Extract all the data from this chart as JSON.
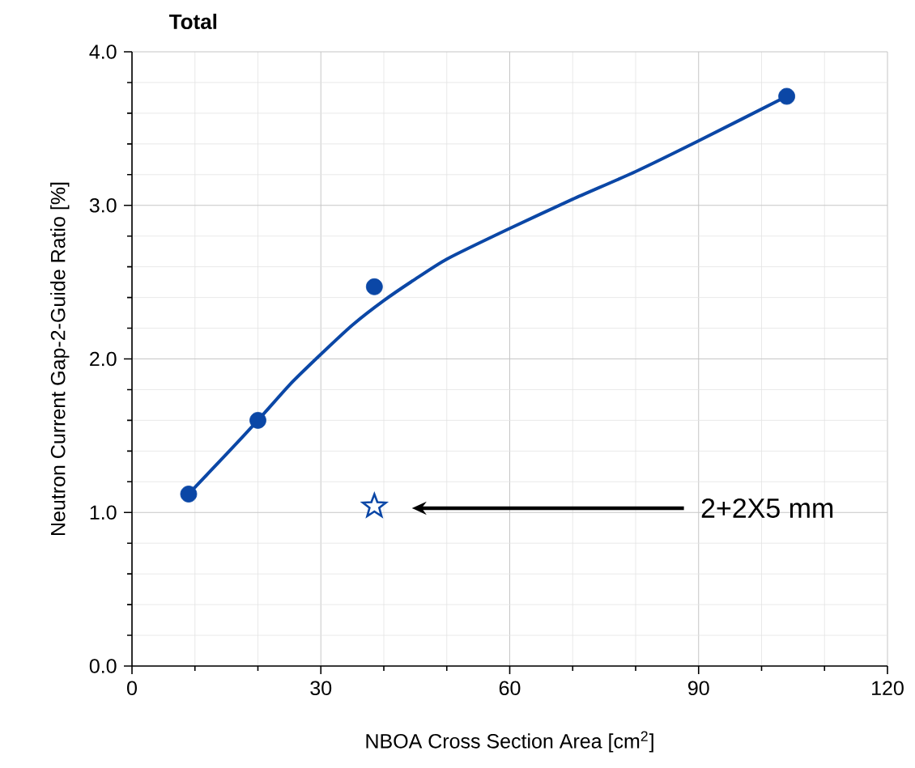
{
  "chart_data": {
    "type": "scatter",
    "title": "**Total**",
    "xlabel": "NBOA Cross Section Area [cm$^{2}$]",
    "ylabel": "Neutron Current Gap-2-Guide Ratio [%]",
    "xlim": [
      0,
      120
    ],
    "ylim": [
      0,
      4
    ],
    "xticks": [
      0,
      30,
      60,
      90,
      120
    ],
    "yticks": [
      {
        "value": 0,
        "label": "0.0"
      },
      {
        "value": 1,
        "label": "1.0"
      },
      {
        "value": 2,
        "label": "2.0"
      },
      {
        "value": 3,
        "label": "3.0"
      },
      {
        "value": 4,
        "label": "4.0"
      }
    ],
    "grid": true,
    "series": [
      {
        "type": "line",
        "color": "#0b47a6",
        "marker": "none",
        "line_style": "solid",
        "x": [
          9,
          15,
          20,
          25,
          30,
          35,
          40,
          45,
          50,
          60,
          70,
          80,
          90,
          104
        ],
        "values": [
          1.12,
          1.38,
          1.6,
          1.83,
          2.03,
          2.22,
          2.38,
          2.52,
          2.65,
          2.85,
          3.04,
          3.22,
          3.42,
          3.71
        ]
      },
      {
        "color": "#0b47a6",
        "marker": "circle",
        "x": [
          9,
          20,
          38.5,
          104
        ],
        "values": [
          1.12,
          1.6,
          2.47,
          3.71
        ]
      },
      {
        "color": "#0b47a6",
        "marker": "star",
        "x": [
          38.5
        ],
        "values": [
          1.04
        ]
      }
    ],
    "annotations": [
      "2+2X5 mm"
    ]
  }
}
